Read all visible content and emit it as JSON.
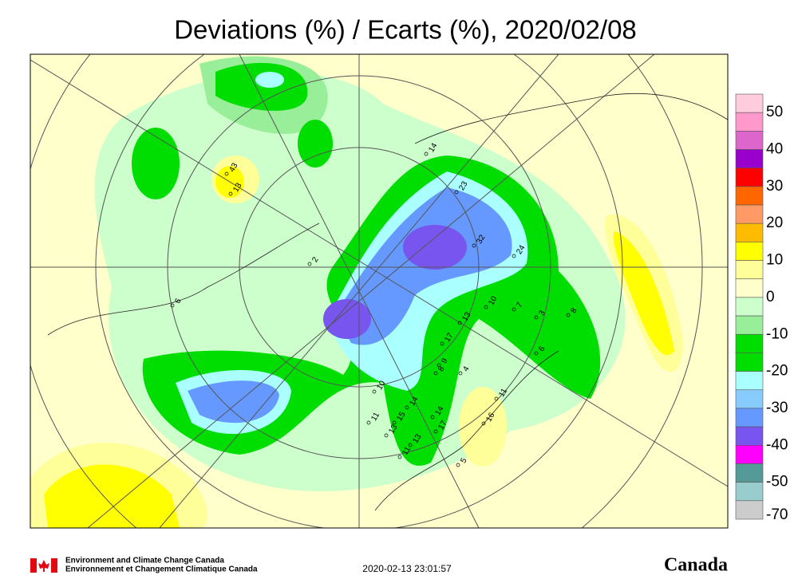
{
  "title": "Deviations (%) / Ecarts (%), 2020/02/08",
  "legend": {
    "labels": [
      "50",
      "40",
      "30",
      "20",
      "10",
      "0",
      "-10",
      "-20",
      "-30",
      "-40",
      "-50",
      "-70"
    ],
    "colors": [
      "#ffccdd",
      "#ff99cc",
      "#dd66cc",
      "#9900cc",
      "#ff0000",
      "#ff6600",
      "#ff9966",
      "#ffbb00",
      "#ffff00",
      "#ffff99",
      "#ffffcc",
      "#ccffcc",
      "#99ee99",
      "#00dd00",
      "#00dd00",
      "#aaffff",
      "#88ccff",
      "#6699ff",
      "#7755ee",
      "#ff00ff",
      "#559999",
      "#99cccc",
      "#cccccc"
    ]
  },
  "stations": [
    "32",
    "24",
    "23",
    "10",
    "13",
    "7",
    "3",
    "8",
    "6",
    "17",
    "8",
    "9",
    "4",
    "10",
    "14",
    "15",
    "13",
    "11",
    "14",
    "17",
    "13",
    "11",
    "5",
    "11",
    "16",
    "13",
    "43",
    "14",
    "2",
    "6"
  ],
  "footer": {
    "agency_en": "Environment and Climate Change Canada",
    "agency_fr": "Environnement et Changement Climatique Canada",
    "timestamp": "2020-02-13 23:01:57",
    "wordmark": "Canada"
  }
}
